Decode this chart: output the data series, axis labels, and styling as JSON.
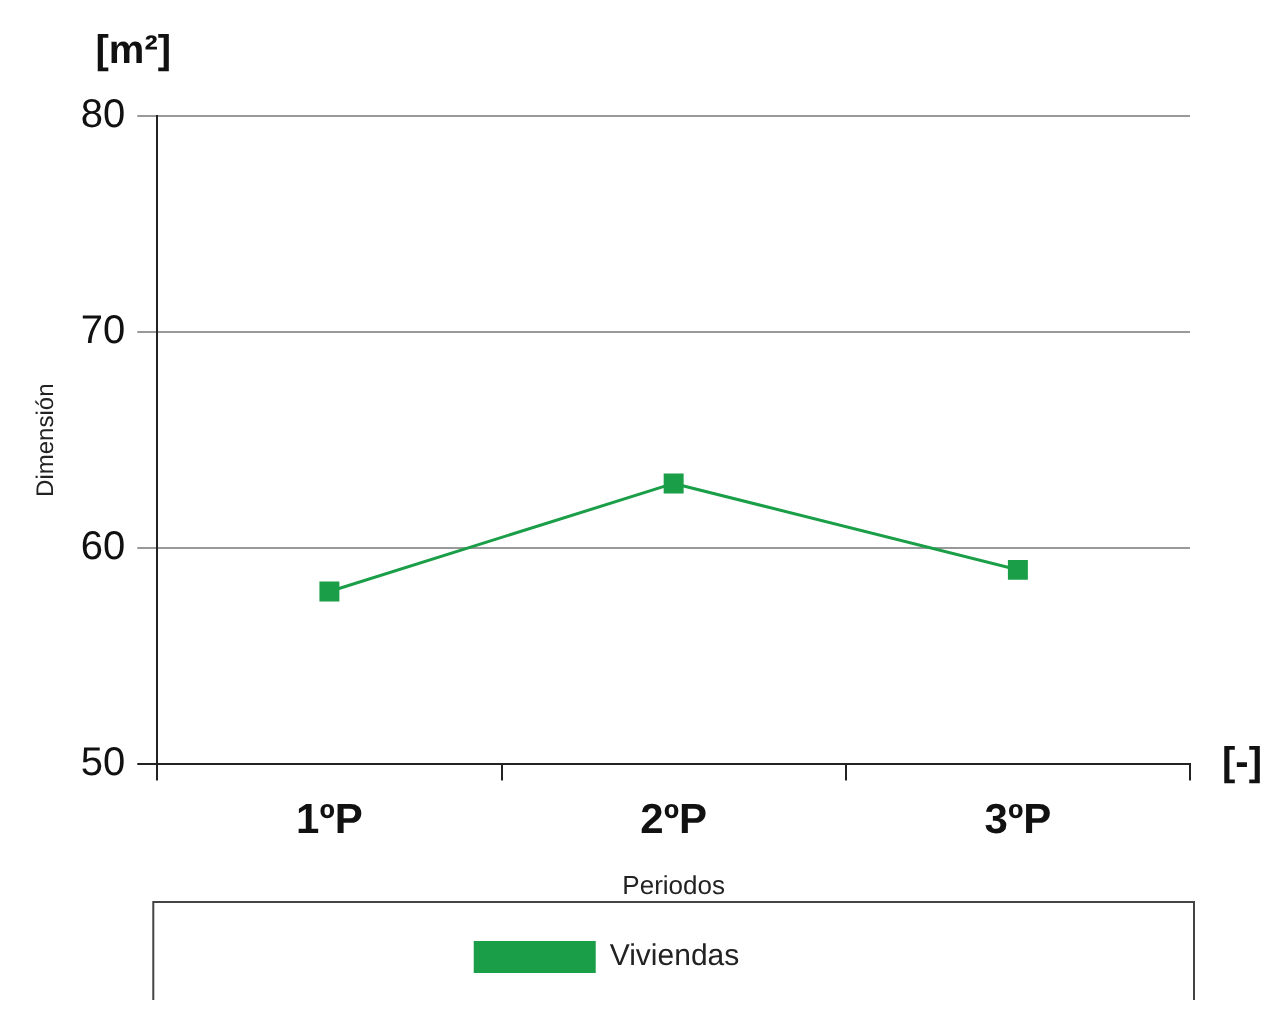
{
  "chart_data": {
    "type": "line",
    "categories": [
      "1ºP",
      "2ºP",
      "3ºP"
    ],
    "series": [
      {
        "name": "Viviendas",
        "color": "#1a9e47",
        "values": [
          58,
          63,
          59
        ]
      }
    ],
    "xlabel": "Periodos",
    "ylabel": "Dimensión",
    "annotations": [
      "[m²]",
      "[-]"
    ],
    "ylim": [
      50,
      80
    ],
    "yticks": [
      50,
      60,
      70,
      80
    ],
    "grid": "y",
    "legend": "bottom",
    "marker": "square",
    "line_style": "solid"
  }
}
